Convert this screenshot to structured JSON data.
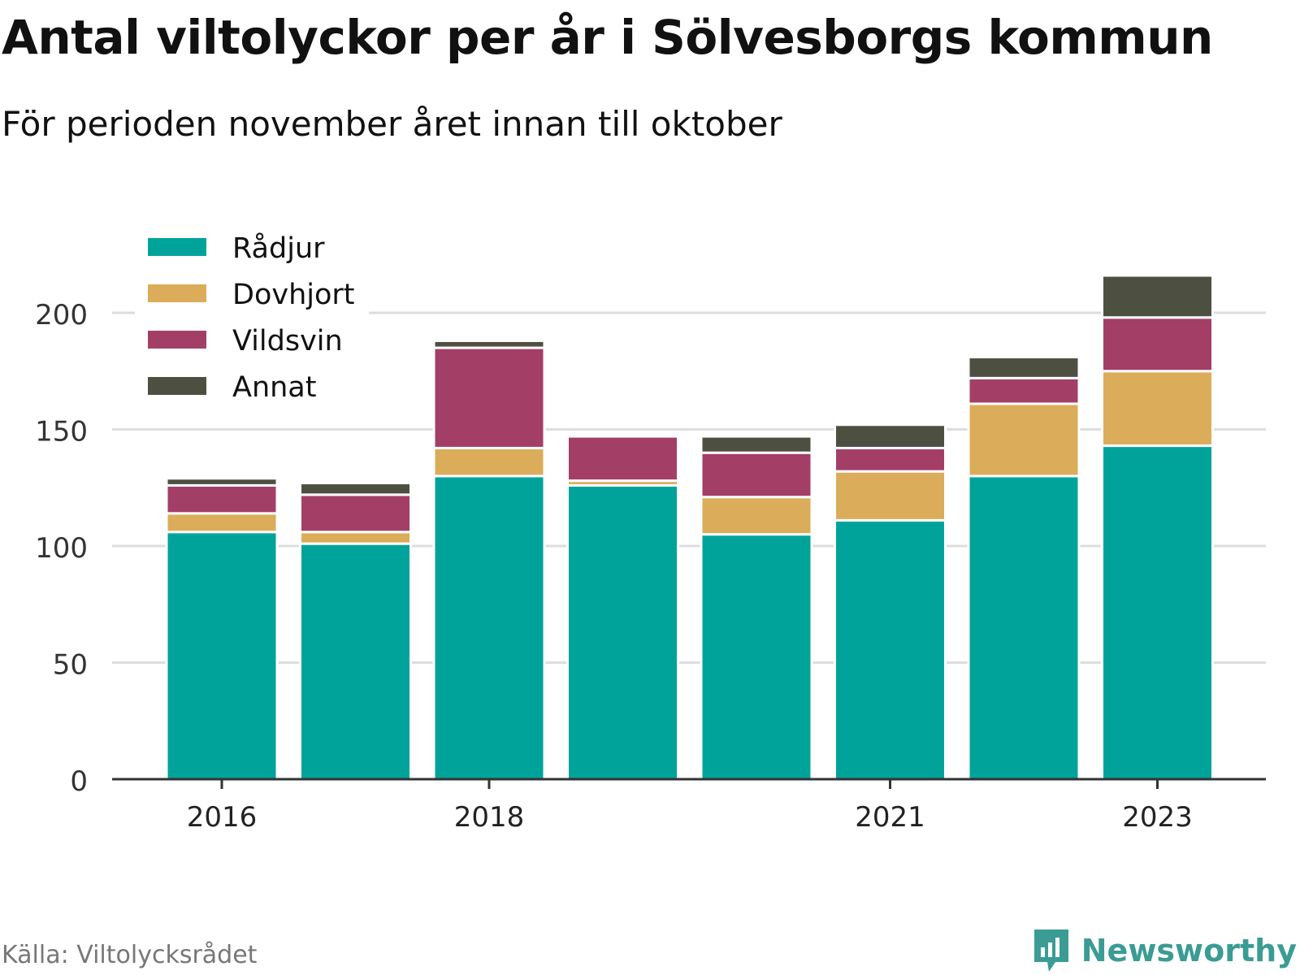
{
  "title": "Antal viltolyckor per år i Sölvesborgs kommun",
  "subtitle": "För perioden november året innan till oktober",
  "source": "Källa: Viltolycksrådet",
  "brand": "Newsworthy",
  "chart_data": {
    "type": "bar",
    "stacked": true,
    "categories": [
      "2016",
      "2017",
      "2018",
      "2019",
      "2020",
      "2021",
      "2022",
      "2023"
    ],
    "x_tick_labels": [
      "2016",
      "",
      "2018",
      "",
      "",
      "2021",
      "",
      "2023"
    ],
    "series": [
      {
        "name": "Rådjur",
        "color": "#00a39a",
        "values": [
          106,
          101,
          130,
          126,
          105,
          111,
          130,
          143
        ]
      },
      {
        "name": "Dovhjort",
        "color": "#dbad5a",
        "values": [
          8,
          5,
          12,
          2,
          16,
          21,
          31,
          32
        ]
      },
      {
        "name": "Vildsvin",
        "color": "#a33f67",
        "values": [
          12,
          16,
          43,
          19,
          19,
          10,
          11,
          23
        ]
      },
      {
        "name": "Annat",
        "color": "#4d5040",
        "values": [
          3,
          5,
          3,
          0,
          7,
          10,
          9,
          18
        ]
      }
    ],
    "yticks": [
      0,
      50,
      100,
      150,
      200
    ],
    "ylim": [
      0,
      216
    ],
    "grid": true,
    "legend": "top-left"
  }
}
